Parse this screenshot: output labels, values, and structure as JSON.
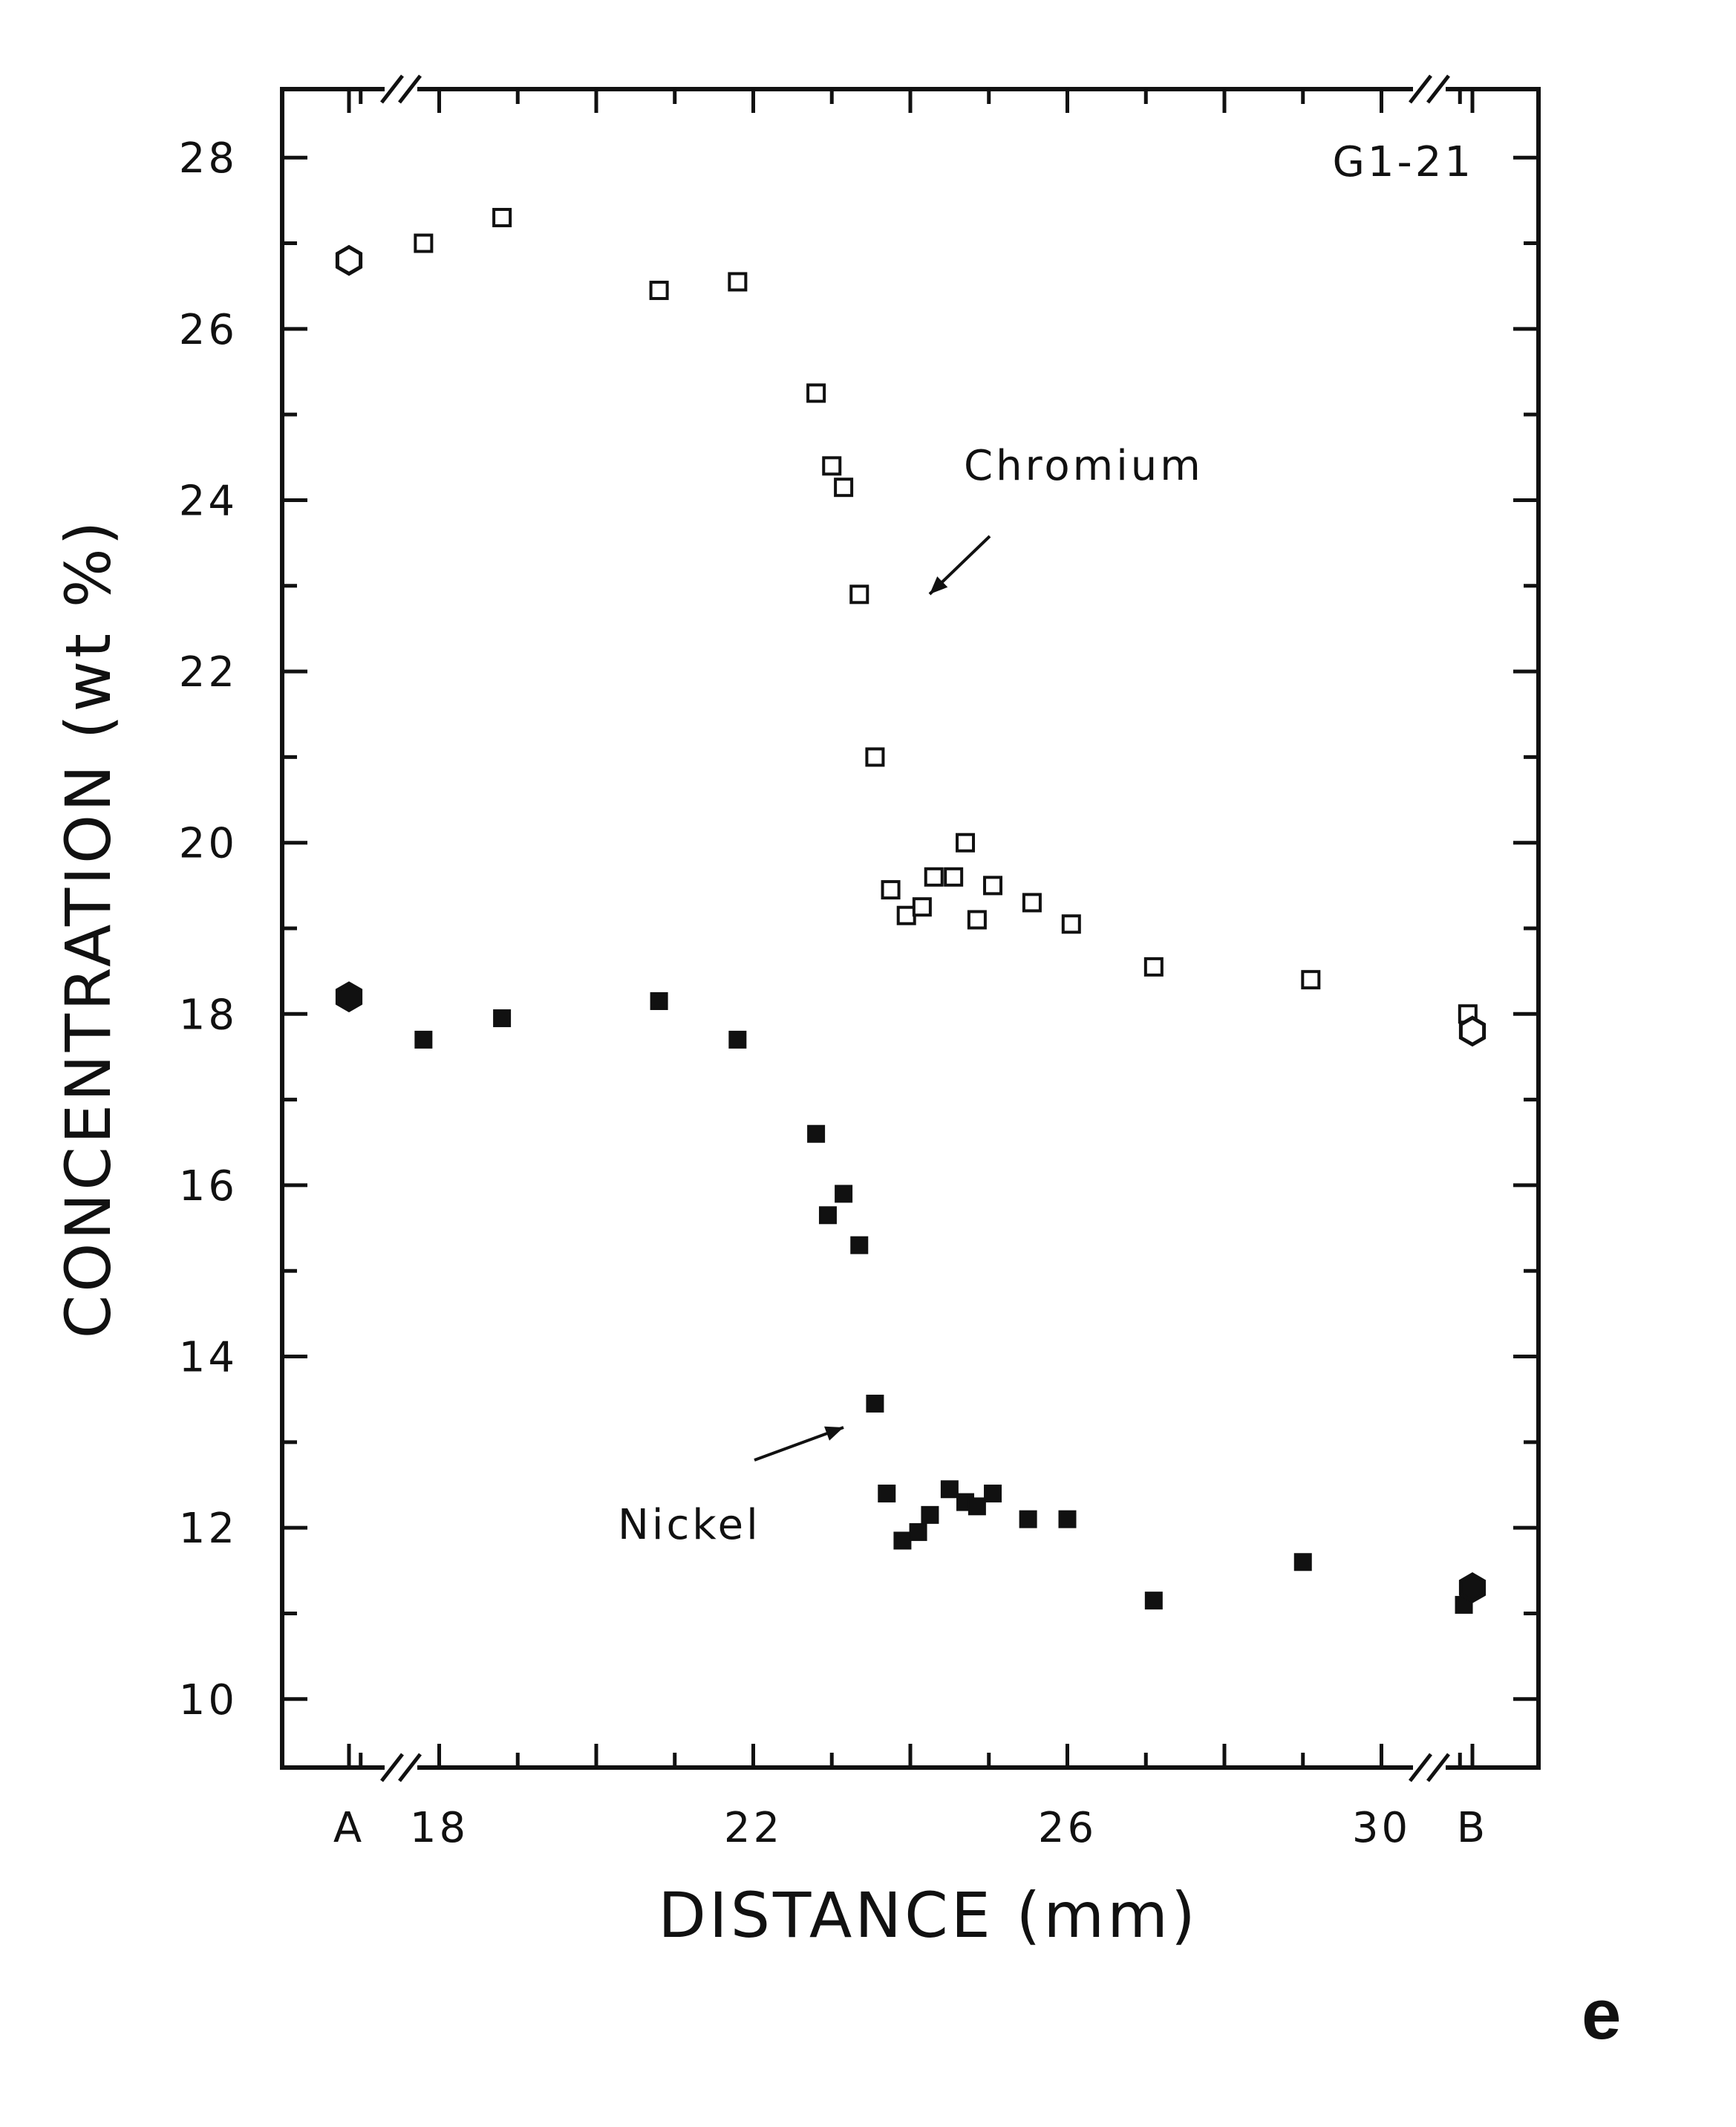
{
  "chart_data": {
    "type": "scatter",
    "title": "",
    "sample_label": "G1-21",
    "panel_letter": "e",
    "xlabel": "DISTANCE (mm)",
    "ylabel": "CONCENTRATION (wt %)",
    "xlim": [
      16,
      32
    ],
    "ylim": [
      9.2,
      28.8
    ],
    "x_ticks": [
      {
        "label": "A",
        "x": "A"
      },
      {
        "label": "18",
        "x": 18
      },
      {
        "label": "22",
        "x": 22
      },
      {
        "label": "26",
        "x": 26
      },
      {
        "label": "30",
        "x": 30
      },
      {
        "label": "B",
        "x": "B"
      }
    ],
    "y_ticks": [
      10,
      12,
      14,
      16,
      18,
      20,
      22,
      24,
      26,
      28
    ],
    "axis_breaks": [
      "between A and 18",
      "between 30 and B"
    ],
    "grid": false,
    "legend": "none",
    "annotations": [
      {
        "text": "Chromium",
        "target_series": "Chromium"
      },
      {
        "text": "Nickel",
        "target_series": "Nickel"
      }
    ],
    "series": [
      {
        "name": "Chromium",
        "marker": "open-square",
        "points": [
          {
            "x": 17.8,
            "y": 27.0
          },
          {
            "x": 18.8,
            "y": 27.3
          },
          {
            "x": 20.8,
            "y": 26.45
          },
          {
            "x": 21.8,
            "y": 26.55
          },
          {
            "x": 22.8,
            "y": 25.25
          },
          {
            "x": 23.0,
            "y": 24.4
          },
          {
            "x": 23.15,
            "y": 24.15
          },
          {
            "x": 23.35,
            "y": 22.9
          },
          {
            "x": 23.55,
            "y": 21.0
          },
          {
            "x": 23.75,
            "y": 19.45
          },
          {
            "x": 23.95,
            "y": 19.15
          },
          {
            "x": 24.15,
            "y": 19.25
          },
          {
            "x": 24.3,
            "y": 19.6
          },
          {
            "x": 24.55,
            "y": 19.6
          },
          {
            "x": 24.7,
            "y": 20.0
          },
          {
            "x": 24.85,
            "y": 19.1
          },
          {
            "x": 25.05,
            "y": 19.5
          },
          {
            "x": 25.55,
            "y": 19.3
          },
          {
            "x": 26.05,
            "y": 19.05
          },
          {
            "x": 27.1,
            "y": 18.55
          },
          {
            "x": 29.1,
            "y": 18.4
          },
          {
            "x": 31.1,
            "y": 18.0
          }
        ]
      },
      {
        "name": "Nickel",
        "marker": "filled-square",
        "points": [
          {
            "x": 17.8,
            "y": 17.7
          },
          {
            "x": 18.8,
            "y": 17.95
          },
          {
            "x": 20.8,
            "y": 18.15
          },
          {
            "x": 21.8,
            "y": 17.7
          },
          {
            "x": 22.8,
            "y": 16.6
          },
          {
            "x": 22.95,
            "y": 15.65
          },
          {
            "x": 23.15,
            "y": 15.9
          },
          {
            "x": 23.35,
            "y": 15.3
          },
          {
            "x": 23.55,
            "y": 13.45
          },
          {
            "x": 23.7,
            "y": 12.4
          },
          {
            "x": 23.9,
            "y": 11.85
          },
          {
            "x": 24.1,
            "y": 11.95
          },
          {
            "x": 24.25,
            "y": 12.15
          },
          {
            "x": 24.5,
            "y": 12.45
          },
          {
            "x": 24.7,
            "y": 12.3
          },
          {
            "x": 24.85,
            "y": 12.25
          },
          {
            "x": 25.05,
            "y": 12.4
          },
          {
            "x": 25.5,
            "y": 12.1
          },
          {
            "x": 26.0,
            "y": 12.1
          },
          {
            "x": 27.1,
            "y": 11.15
          },
          {
            "x": 29.0,
            "y": 11.6
          },
          {
            "x": 31.05,
            "y": 11.1
          }
        ]
      }
    ],
    "endpoint_points": [
      {
        "position": "A",
        "element": "Chromium",
        "marker": "open-hexagon",
        "y": 26.8
      },
      {
        "position": "A",
        "element": "Nickel",
        "marker": "filled-hexagon",
        "y": 18.2
      },
      {
        "position": "B",
        "element": "Chromium",
        "marker": "open-hexagon",
        "y": 17.8
      },
      {
        "position": "B",
        "element": "Nickel",
        "marker": "filled-hexagon",
        "y": 11.3
      }
    ]
  }
}
